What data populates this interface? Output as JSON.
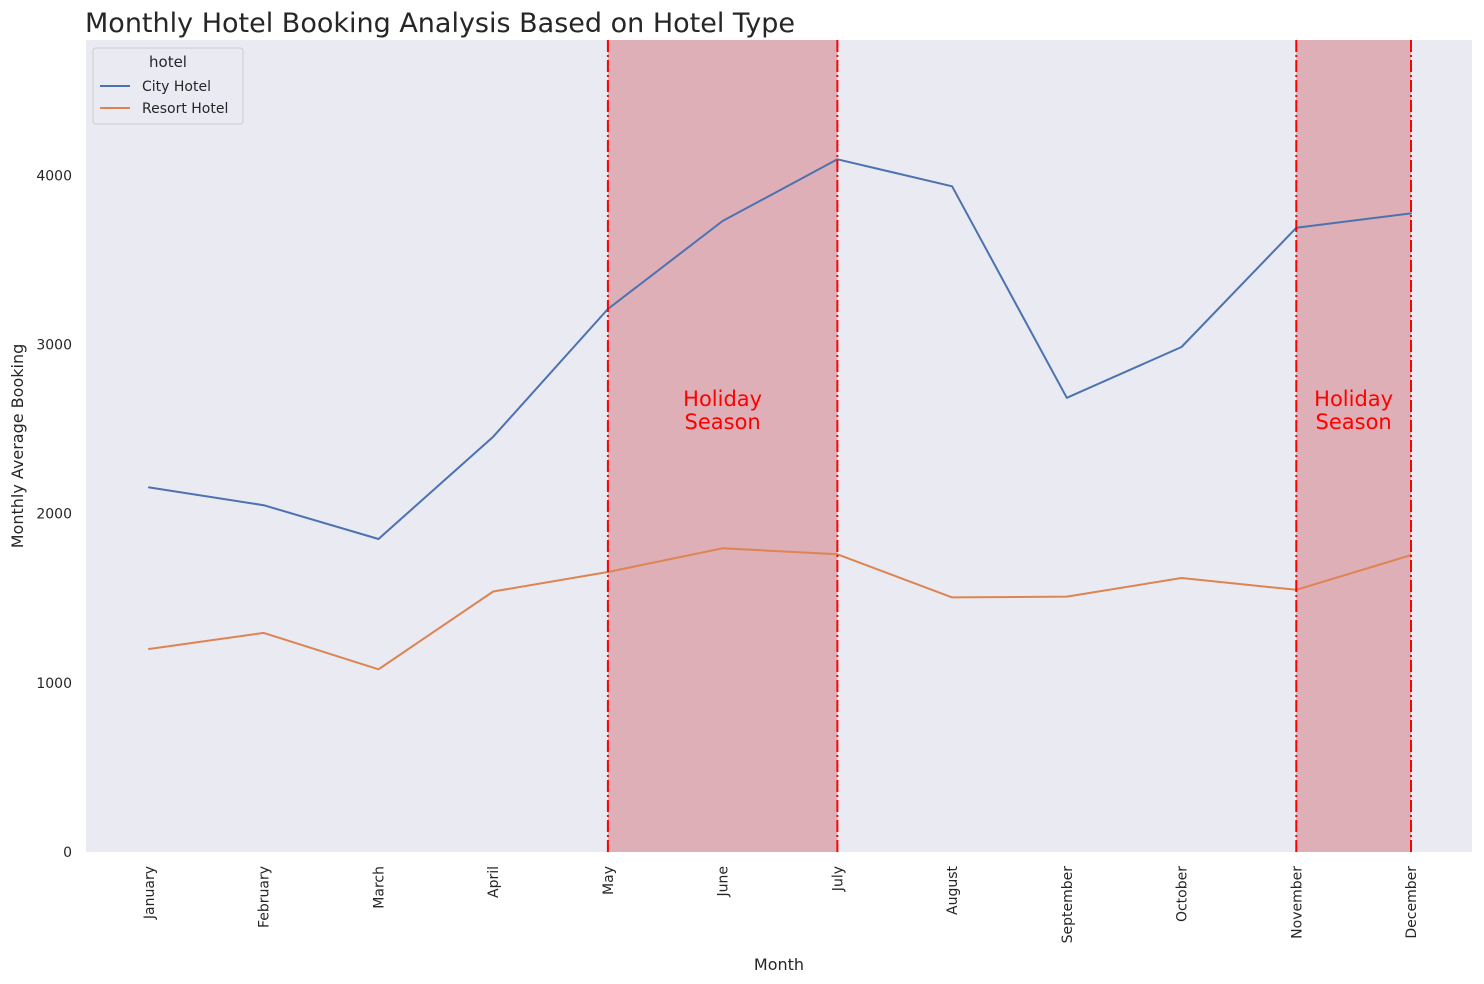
{
  "chart_data": {
    "type": "line",
    "title": "Monthly Hotel Booking Analysis Based on Hotel Type",
    "xlabel": "Month",
    "ylabel": "Monthly Average Booking",
    "categories": [
      "January",
      "February",
      "March",
      "April",
      "May",
      "June",
      "July",
      "August",
      "September",
      "October",
      "November",
      "December"
    ],
    "y_ticks": [
      0,
      1000,
      2000,
      3000,
      4000
    ],
    "ylim": [
      0,
      4800
    ],
    "grid": false,
    "legend": {
      "title": "hotel",
      "placement": "top-left"
    },
    "series": [
      {
        "name": "City Hotel",
        "color": "#4c72b0",
        "values": [
          2155,
          2050,
          1850,
          2455,
          3210,
          3730,
          4095,
          3935,
          2685,
          2985,
          3690,
          3775
        ]
      },
      {
        "name": "Resort Hotel",
        "color": "#dd8452",
        "values": [
          1200,
          1295,
          1080,
          1540,
          1655,
          1795,
          1760,
          1505,
          1510,
          1620,
          1550,
          1755
        ]
      }
    ],
    "highlights": [
      {
        "start": "May",
        "end": "July",
        "label_lines": [
          "Holiday",
          "Season"
        ]
      },
      {
        "start": "November",
        "end": "December",
        "label_lines": [
          "Holiday",
          "Season"
        ]
      }
    ],
    "colors": {
      "plot_background": "#eaeaf2",
      "highlight_fill": "#d8959c",
      "highlight_line": "#ff0000",
      "highlight_text": "#ff0000",
      "text": "#262626"
    }
  }
}
